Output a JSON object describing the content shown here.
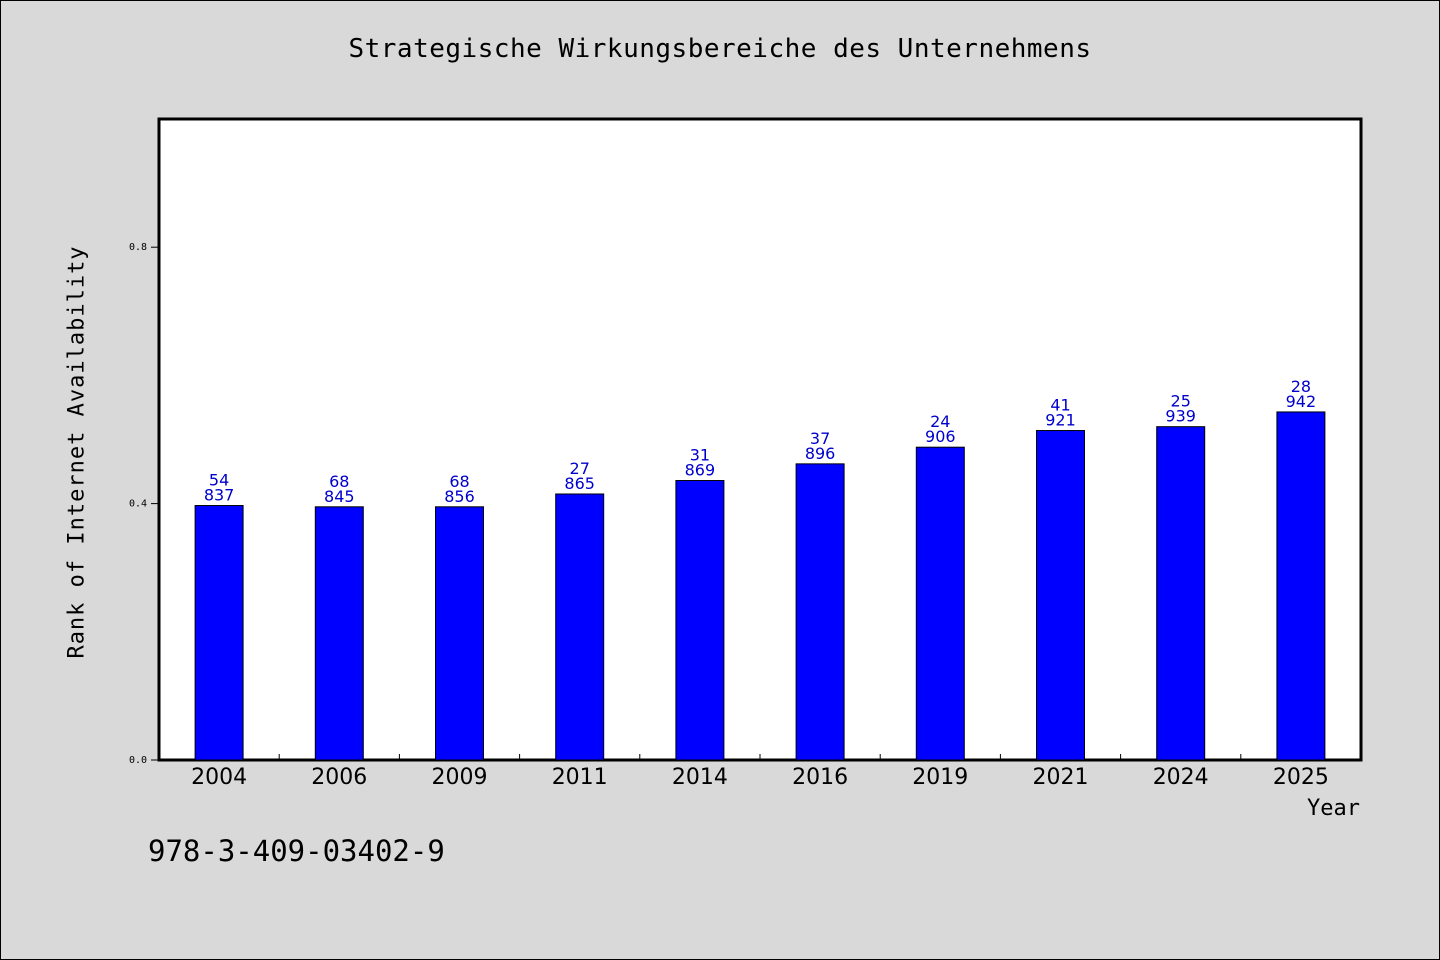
{
  "chart_data": {
    "type": "bar",
    "title": "Strategische Wirkungsbereiche des Unternehmens",
    "xlabel": "Year",
    "ylabel": "Rank of Internet Availability",
    "ylim": [
      0,
      1.0
    ],
    "yticks": [
      0.0,
      0.4,
      0.8
    ],
    "ytick_labels": [
      "0.0",
      "0.4",
      "0.8"
    ],
    "grid": false,
    "categories": [
      "2004",
      "2006",
      "2009",
      "2011",
      "2014",
      "2016",
      "2019",
      "2021",
      "2024",
      "2025"
    ],
    "values": [
      0.397,
      0.395,
      0.395,
      0.415,
      0.436,
      0.462,
      0.488,
      0.514,
      0.52,
      0.543
    ],
    "data_labels": [
      [
        "54",
        "837"
      ],
      [
        "68",
        "845"
      ],
      [
        "68",
        "856"
      ],
      [
        "27",
        "865"
      ],
      [
        "31",
        "869"
      ],
      [
        "37",
        "896"
      ],
      [
        "24",
        "906"
      ],
      [
        "41",
        "921"
      ],
      [
        "25",
        "939"
      ],
      [
        "28",
        "942"
      ]
    ],
    "colors": {
      "bar": "#0000ff",
      "data_label": "#0000cc",
      "plot_bg": "#ffffff",
      "figure_bg": "#d9d9d9"
    }
  },
  "annotation": "978-3-409-03402-9"
}
